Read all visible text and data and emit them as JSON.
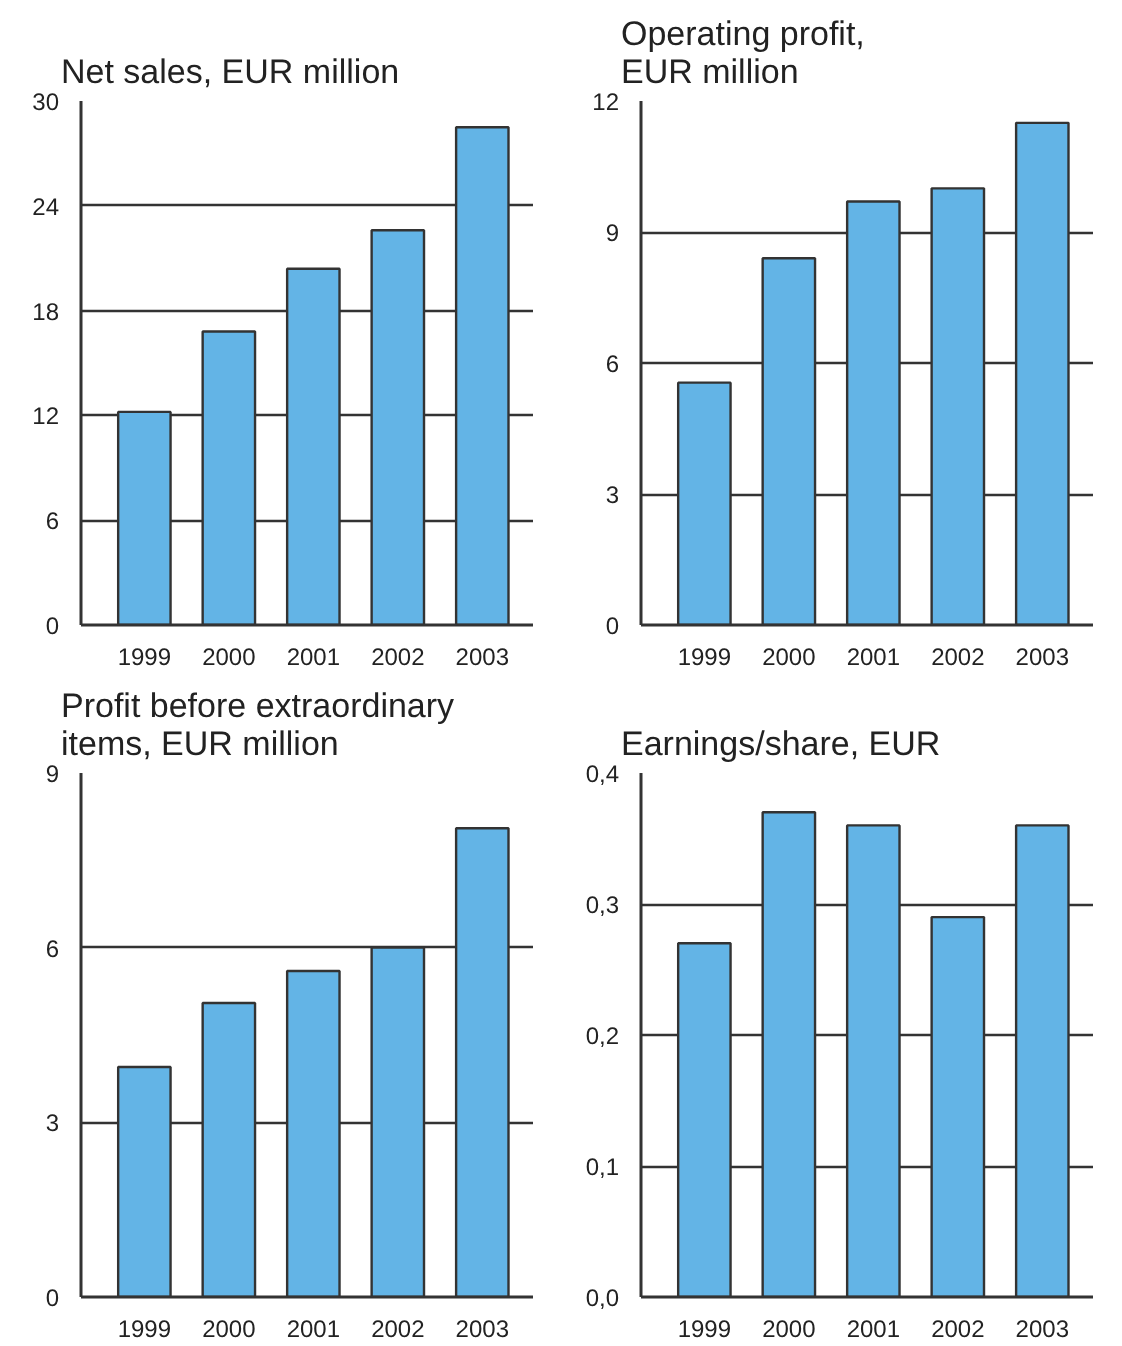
{
  "chart_data": [
    {
      "type": "bar",
      "title": "Net sales, EUR million",
      "categories": [
        "1999",
        "2000",
        "2001",
        "2002",
        "2003"
      ],
      "values": [
        12.2,
        16.8,
        20.4,
        22.6,
        28.5
      ],
      "color": "#63b4e6",
      "ylim": [
        0,
        30
      ],
      "yticks": [
        0,
        6,
        12,
        18,
        24,
        30
      ],
      "grid": "y"
    },
    {
      "type": "bar",
      "title": "Operating profit, EUR million",
      "categories": [
        "1999",
        "2000",
        "2001",
        "2002",
        "2003"
      ],
      "values": [
        5.55,
        8.4,
        9.7,
        10.0,
        11.5
      ],
      "color": "#63b4e6",
      "ylim": [
        0,
        12
      ],
      "yticks": [
        0,
        3,
        6,
        9,
        12
      ],
      "grid": "y"
    },
    {
      "type": "bar",
      "title": "Profit before extraordinary items, EUR million",
      "categories": [
        "1999",
        "2000",
        "2001",
        "2002",
        "2003"
      ],
      "values": [
        3.95,
        5.05,
        5.6,
        6.0,
        8.05
      ],
      "color": "#63b4e6",
      "ylim": [
        0,
        9
      ],
      "yticks": [
        0,
        3,
        6,
        9
      ],
      "grid": "y"
    },
    {
      "type": "bar",
      "title": "Earnings/share, EUR",
      "categories": [
        "1999",
        "2000",
        "2001",
        "2002",
        "2003"
      ],
      "values": [
        0.27,
        0.37,
        0.36,
        0.29,
        0.36
      ],
      "color": "#63b4e6",
      "ylim": [
        0,
        0.4
      ],
      "yticks": [
        {
          "value": 0,
          "label": "0,0"
        },
        {
          "value": 0.1,
          "label": "0,1"
        },
        {
          "value": 0.2,
          "label": "0,2"
        },
        {
          "value": 0.3,
          "label": "0,3"
        },
        {
          "value": 0.4,
          "label": "0,4"
        }
      ],
      "grid": "y"
    }
  ]
}
